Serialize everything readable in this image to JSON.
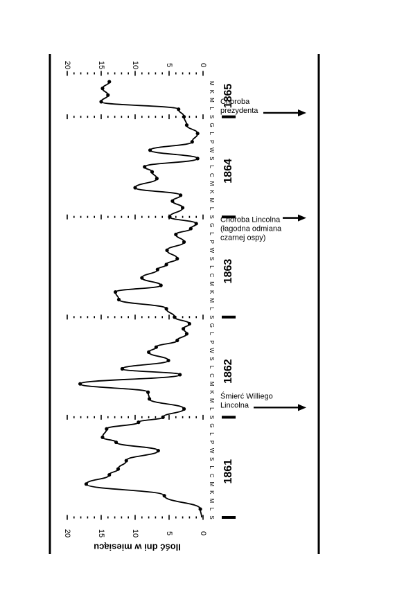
{
  "chart_data": {
    "type": "line",
    "orientation": "rotated-90-clockwise",
    "ylabel": "Ilość dni w miesiącu",
    "yticks": [
      "20",
      "15",
      "10",
      "5",
      "0"
    ],
    "ylim": [
      0,
      20
    ],
    "month_letters": [
      "S",
      "L",
      "M",
      "K",
      "M",
      "C",
      "L",
      "S",
      "W",
      "P",
      "L",
      "G",
      "S",
      "L",
      "M",
      "K",
      "M",
      "C",
      "L",
      "S",
      "W",
      "P",
      "L",
      "G",
      "S",
      "L",
      "M",
      "K",
      "M",
      "C",
      "L",
      "S",
      "W",
      "P",
      "L",
      "G",
      "S",
      "L",
      "M",
      "K",
      "M",
      "C",
      "L",
      "S",
      "W",
      "P",
      "L",
      "G",
      "S",
      "L",
      "M",
      "K",
      "M"
    ],
    "years": [
      {
        "label": "1861",
        "month_index": 5.5
      },
      {
        "label": "1862",
        "month_index": 17.5
      },
      {
        "label": "1863",
        "month_index": 29.5
      },
      {
        "label": "1864",
        "month_index": 41.5
      },
      {
        "label": "1865",
        "month_index": 50.5
      }
    ],
    "year_boundaries": [
      0,
      12,
      24,
      36,
      48
    ],
    "annotations": [
      {
        "text": [
          "Śmierć Williego",
          "Lincolna"
        ],
        "month_index": 13.5
      },
      {
        "text": [
          "Choroba Lincolna",
          "(łagodna odmiana",
          "czarnej ospy)"
        ],
        "month_index": 35.3
      },
      {
        "text": [
          "Choroba",
          "prezydenta"
        ],
        "month_index": 48.8
      }
    ],
    "series": [
      {
        "month_index": [
          0,
          1,
          2.6,
          4,
          5.1,
          5.8,
          6.8,
          8,
          9,
          9.6,
          10.6,
          11.4,
          12,
          13,
          14.2,
          15,
          16,
          17.1,
          17.8,
          18.8,
          19.8,
          20.4,
          21.2,
          22,
          22.6,
          23.2,
          24,
          25,
          26.1,
          27,
          27.8,
          28.7,
          29.7,
          30.3,
          31,
          32,
          33,
          33.9,
          34.6,
          35.2,
          36,
          37.1,
          37.9,
          38.6,
          39.5,
          40.6,
          41.4,
          42,
          43,
          44,
          45,
          46,
          47,
          48,
          48.9,
          49.8,
          50.6,
          51.4,
          52.2
        ],
        "values": [
          0.2,
          0.4,
          5.7,
          17.2,
          13.8,
          12.5,
          11.3,
          6.6,
          12.8,
          14.8,
          14.2,
          9.5,
          5.9,
          2.8,
          7.9,
          8.1,
          18.1,
          3.4,
          11.9,
          5.1,
          8.0,
          6.9,
          3.8,
          2.4,
          2.9,
          2.0,
          4.2,
          5.4,
          12.4,
          12.9,
          6.2,
          9.0,
          6.7,
          5.4,
          3.8,
          5.3,
          2.8,
          4.0,
          1.8,
          1.0,
          4.9,
          3.0,
          4.5,
          3.3,
          10.0,
          6.8,
          7.5,
          8.6,
          0.8,
          7.8,
          1.6,
          0.8,
          2.4,
          2.8,
          3.6,
          15.0,
          14.0,
          14.8,
          13.8
        ]
      }
    ]
  }
}
